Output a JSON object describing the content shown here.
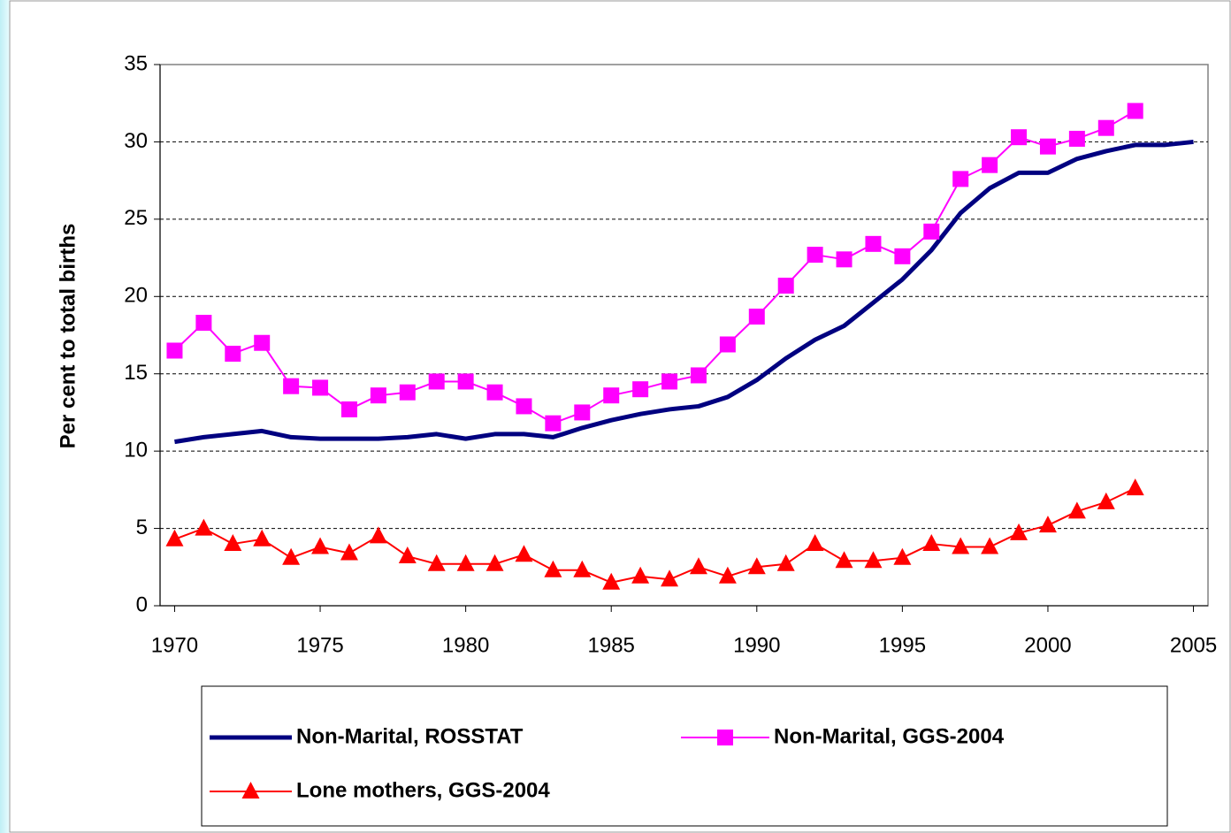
{
  "chart_data": {
    "type": "line",
    "y_label": "Per cent to total births",
    "x": [
      1970,
      1971,
      1972,
      1973,
      1974,
      1975,
      1976,
      1977,
      1978,
      1979,
      1980,
      1981,
      1982,
      1983,
      1984,
      1985,
      1986,
      1987,
      1988,
      1989,
      1990,
      1991,
      1992,
      1993,
      1994,
      1995,
      1996,
      1997,
      1998,
      1999,
      2000,
      2001,
      2002,
      2003,
      2004,
      2005
    ],
    "xlim": [
      1969.5,
      2005.5
    ],
    "xticks": [
      1970,
      1975,
      1980,
      1985,
      1990,
      1995,
      2000,
      2005
    ],
    "ylim": [
      0,
      35
    ],
    "yticks": [
      0,
      5,
      10,
      15,
      20,
      25,
      30,
      35
    ],
    "grid": true,
    "series": [
      {
        "name": "Non-Marital, ROSSTAT",
        "color": "#000080",
        "marker": "none",
        "values": [
          10.6,
          10.9,
          11.1,
          11.3,
          10.9,
          10.8,
          10.8,
          10.8,
          10.9,
          11.1,
          10.8,
          11.1,
          11.1,
          10.9,
          11.5,
          12.0,
          12.4,
          12.7,
          12.9,
          13.5,
          14.6,
          16.0,
          17.2,
          18.1,
          19.6,
          21.1,
          23.0,
          25.4,
          27.0,
          28.0,
          28.0,
          28.9,
          29.4,
          29.8,
          29.8,
          30.0
        ]
      },
      {
        "name": "Non-Marital, GGS-2004",
        "color": "#FF00FF",
        "marker": "square",
        "values": [
          16.5,
          18.3,
          16.3,
          17.0,
          14.2,
          14.1,
          12.7,
          13.6,
          13.8,
          14.5,
          14.5,
          13.8,
          12.9,
          11.8,
          12.5,
          13.6,
          14.0,
          14.5,
          14.9,
          16.9,
          18.7,
          20.7,
          22.7,
          22.4,
          23.4,
          22.6,
          24.2,
          27.6,
          28.5,
          30.3,
          29.7,
          30.2,
          30.9,
          32.0,
          null,
          null
        ]
      },
      {
        "name": "Lone mothers, GGS-2004",
        "color": "#FF0000",
        "marker": "triangle",
        "values": [
          4.3,
          5.0,
          4.0,
          4.3,
          3.1,
          3.8,
          3.4,
          4.5,
          3.2,
          2.7,
          2.7,
          2.7,
          3.3,
          2.3,
          2.3,
          1.5,
          1.9,
          1.7,
          2.5,
          1.9,
          2.5,
          2.7,
          4.0,
          2.9,
          2.9,
          3.1,
          4.0,
          3.8,
          3.8,
          4.7,
          5.2,
          6.1,
          6.7,
          7.6,
          null,
          null
        ]
      }
    ]
  }
}
